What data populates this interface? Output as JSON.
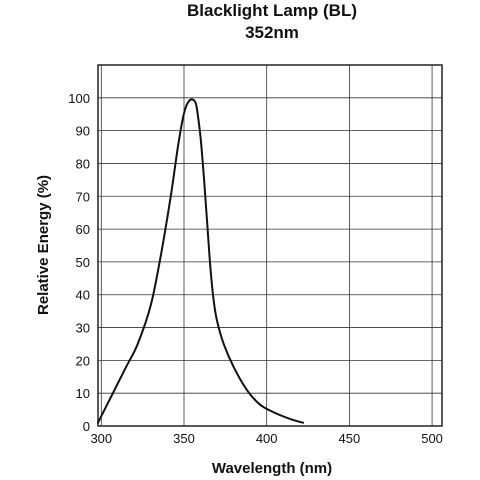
{
  "chart_data": {
    "type": "line",
    "title": "Blacklight Lamp (BL)",
    "subtitle": "352nm",
    "xlabel": "Wavelength (nm)",
    "ylabel": "Relative Energy (%)",
    "xlim": [
      298,
      506
    ],
    "ylim": [
      0,
      110
    ],
    "x_ticks": [
      "300",
      "350",
      "400",
      "450",
      "500"
    ],
    "y_ticks": [
      "0",
      "10",
      "20",
      "30",
      "40",
      "50",
      "60",
      "70",
      "80",
      "90",
      "100"
    ],
    "grid": true,
    "series": [
      {
        "x": [
          298,
          305,
          315,
          322,
          330,
          336,
          342,
          346,
          349,
          351,
          353,
          355,
          357,
          358,
          360,
          362,
          364,
          366,
          368,
          370,
          374,
          380,
          388,
          396,
          405,
          415,
          422
        ],
        "y": [
          1,
          8,
          18,
          25,
          37,
          52,
          70,
          84,
          93,
          97,
          99,
          99.5,
          98.5,
          96,
          88,
          76,
          62,
          48,
          38,
          32,
          25,
          18,
          11,
          6.5,
          4,
          2,
          1
        ]
      }
    ]
  }
}
